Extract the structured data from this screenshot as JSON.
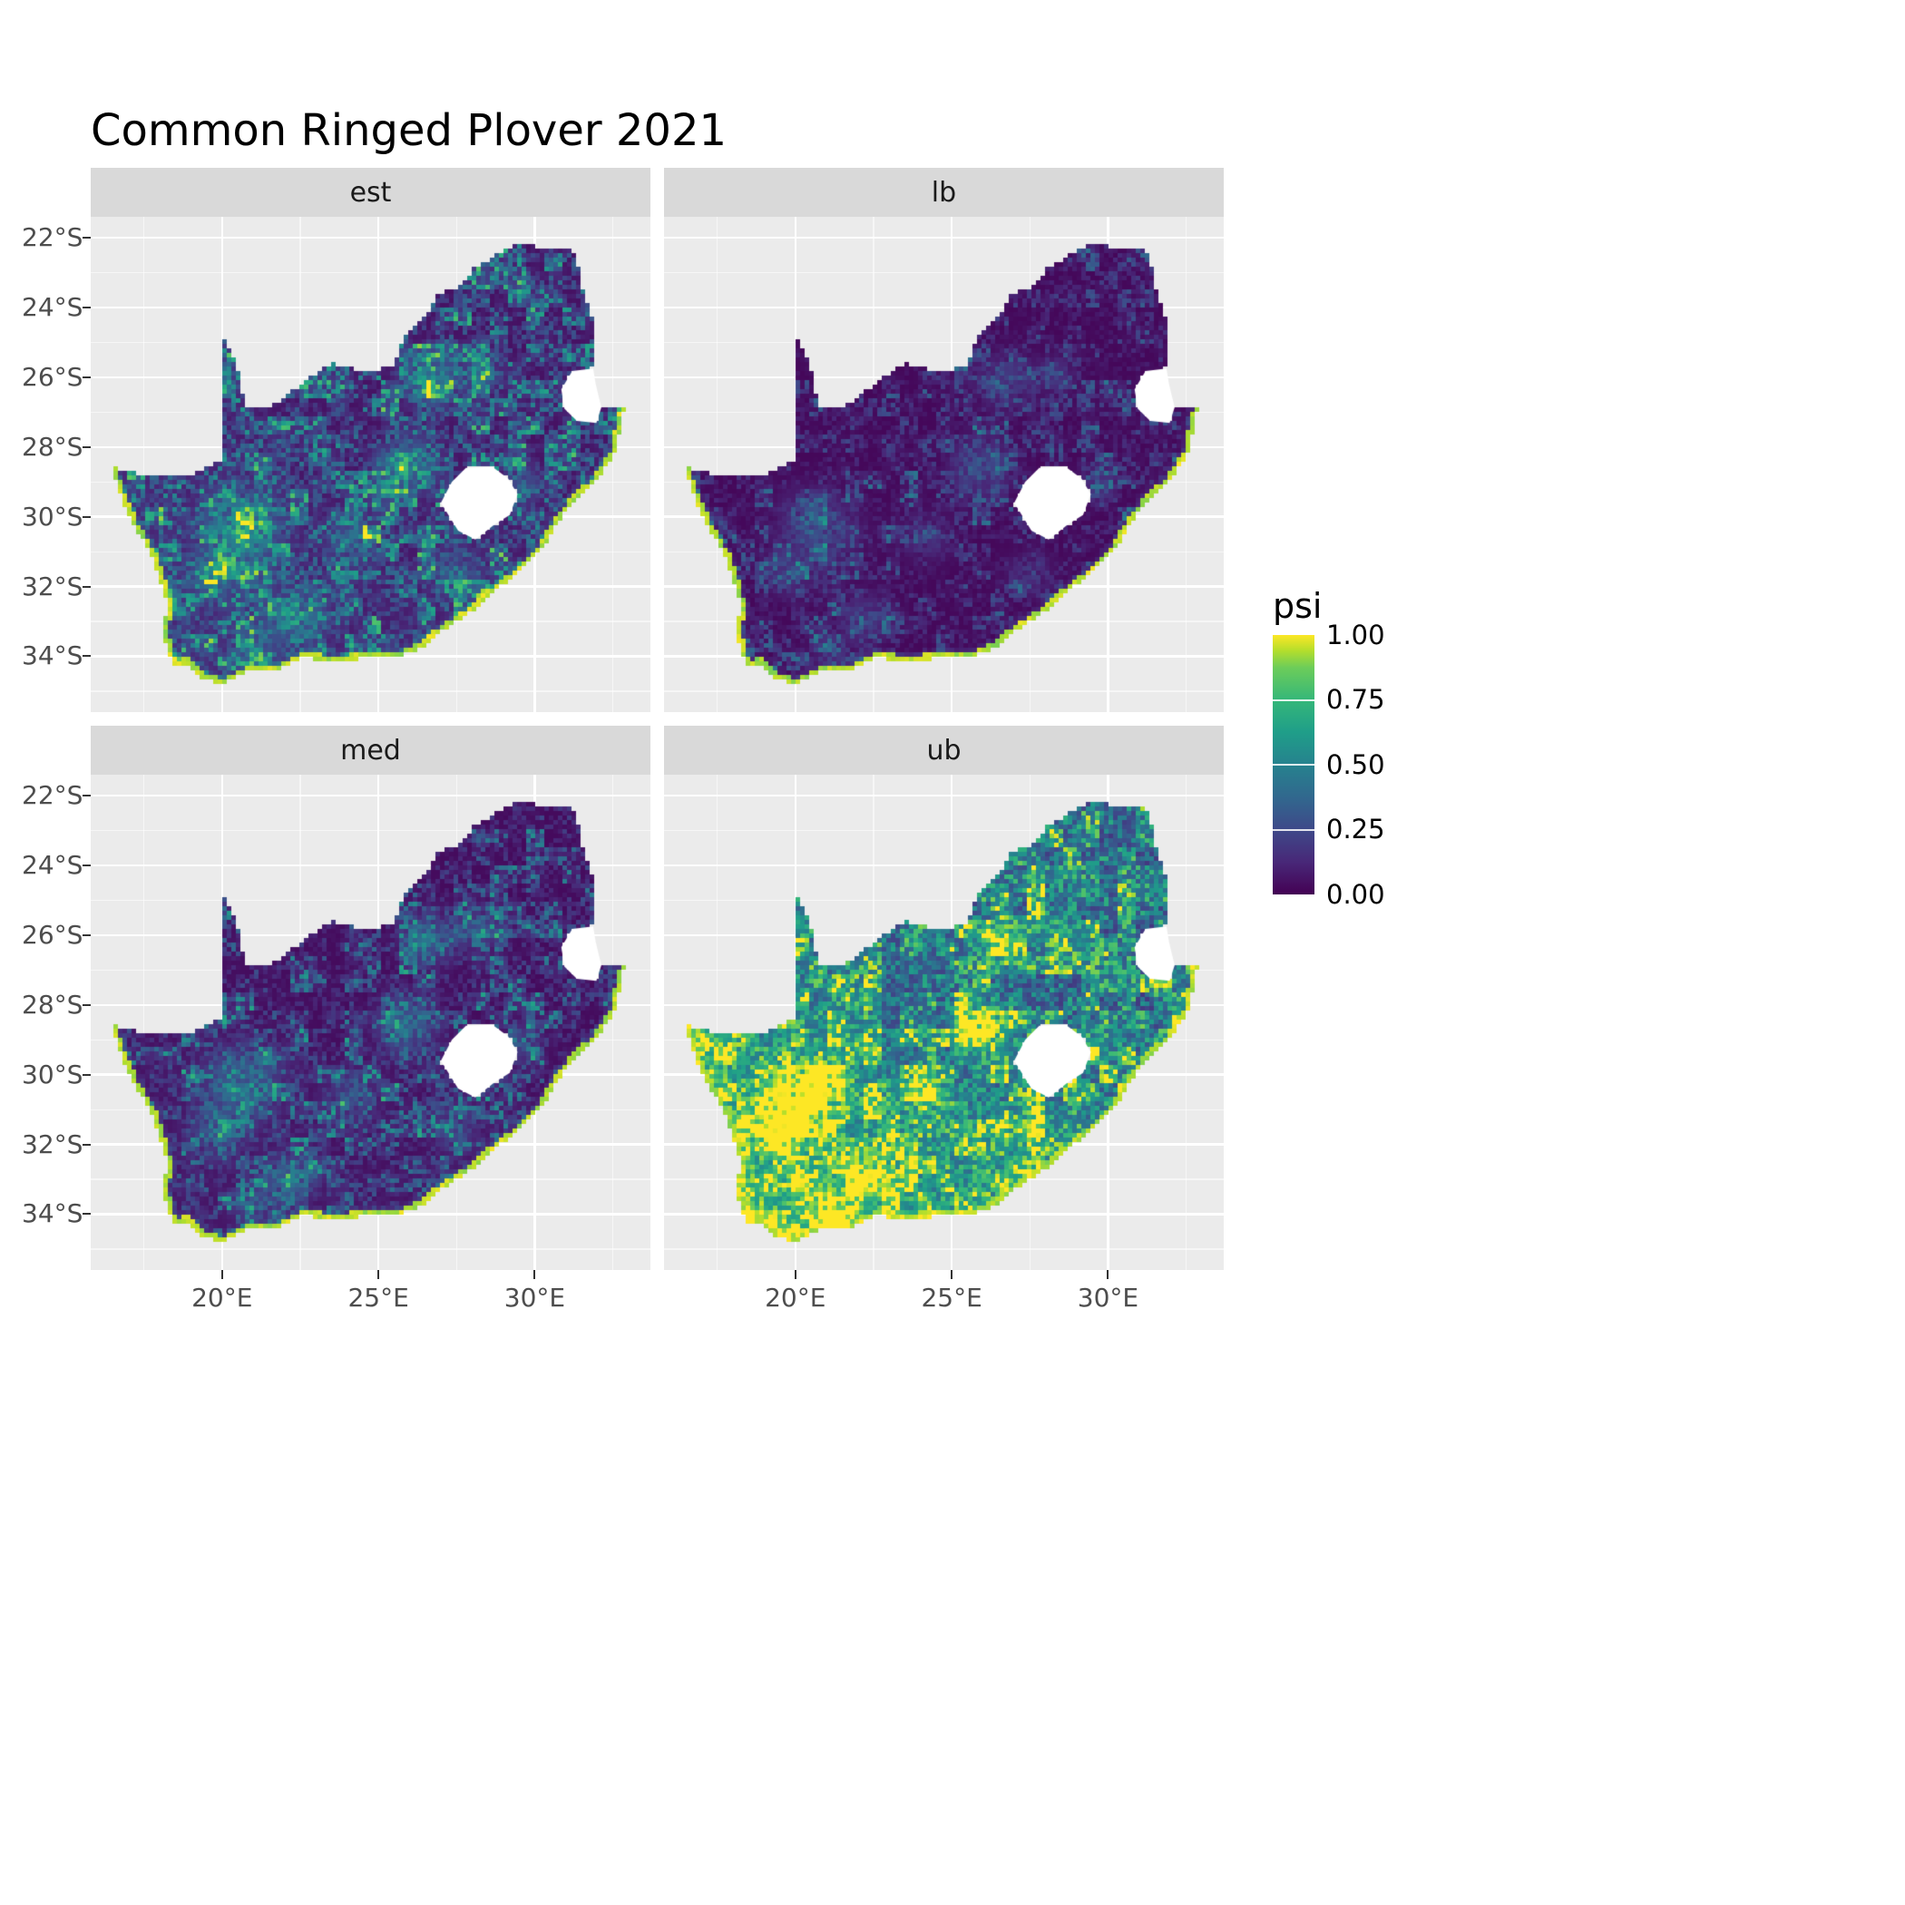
{
  "title": "Common Ringed Plover 2021",
  "axes": {
    "x": [
      {
        "label": "20°E",
        "lon": 20
      },
      {
        "label": "25°E",
        "lon": 25
      },
      {
        "label": "30°E",
        "lon": 30
      }
    ],
    "x_minor": [
      17.5,
      22.5,
      27.5,
      32.5
    ],
    "y": [
      {
        "label": "22°S",
        "lat": -22
      },
      {
        "label": "24°S",
        "lat": -24
      },
      {
        "label": "26°S",
        "lat": -26
      },
      {
        "label": "28°S",
        "lat": -28
      },
      {
        "label": "30°S",
        "lat": -30
      },
      {
        "label": "32°S",
        "lat": -32
      },
      {
        "label": "34°S",
        "lat": -34
      }
    ],
    "y_minor": [
      -23,
      -25,
      -27,
      -29,
      -31,
      -33,
      -35
    ]
  },
  "legend": {
    "title": "psi",
    "ticks": [
      {
        "label": "1.00",
        "value": 1
      },
      {
        "label": "0.75",
        "value": 0.75
      },
      {
        "label": "0.50",
        "value": 0.5
      },
      {
        "label": "0.25",
        "value": 0.25
      },
      {
        "label": "0.00",
        "value": 0
      }
    ]
  },
  "colors": {
    "background": "#FFFFFF",
    "panel_bg": "#EBEBEB",
    "strip_bg": "#D9D9D9",
    "grid": "#FFFFFF",
    "axis_text": "#4D4D4D",
    "tick": "#333333",
    "na_fill": "#FFFFFF"
  },
  "chart_data": {
    "type": "heatmap",
    "subtype": "faceted raster maps of occupancy probability (psi) over South Africa",
    "psi_range": [
      0,
      1
    ],
    "facets": [
      {
        "label": "est",
        "base": 0.05,
        "noise": 0.85,
        "pow": 2.6,
        "hot": 0.85,
        "sw": 0.08
      },
      {
        "label": "lb",
        "base": 0.02,
        "noise": 0.45,
        "pow": 3.2,
        "hot": 0.4,
        "sw": 0.0
      },
      {
        "label": "med",
        "base": 0.03,
        "noise": 0.65,
        "pow": 3.0,
        "hot": 0.65,
        "sw": 0.04
      },
      {
        "label": "ub",
        "base": 0.18,
        "noise": 0.95,
        "pow": 1.6,
        "hot": 1.0,
        "sw": 0.45
      }
    ],
    "extent": {
      "lon_min": 15.8,
      "lon_max": 33.7,
      "lat_top": -21.4,
      "lat_bottom": -35.6
    },
    "viridis": [
      {
        "t": 0,
        "c": "#440154"
      },
      {
        "t": 0.125,
        "c": "#482878"
      },
      {
        "t": 0.25,
        "c": "#3E4989"
      },
      {
        "t": 0.375,
        "c": "#31688E"
      },
      {
        "t": 0.5,
        "c": "#26828E"
      },
      {
        "t": 0.625,
        "c": "#1F9E89"
      },
      {
        "t": 0.75,
        "c": "#35B779"
      },
      {
        "t": 0.875,
        "c": "#6DCD59"
      },
      {
        "t": 0.94,
        "c": "#B4DE2C"
      },
      {
        "t": 1,
        "c": "#FDE725"
      }
    ],
    "outline": [
      [
        16.45,
        -28.58
      ],
      [
        17.2,
        -28.75
      ],
      [
        17.9,
        -28.78
      ],
      [
        18.6,
        -28.87
      ],
      [
        19.3,
        -28.72
      ],
      [
        19.7,
        -28.5
      ],
      [
        19.99,
        -28.4
      ],
      [
        19.99,
        -24.77
      ],
      [
        20.45,
        -25.6
      ],
      [
        20.75,
        -26.89
      ],
      [
        21.6,
        -26.85
      ],
      [
        22.2,
        -26.4
      ],
      [
        22.85,
        -26.0
      ],
      [
        23.5,
        -25.6
      ],
      [
        24.2,
        -25.75
      ],
      [
        24.85,
        -25.8
      ],
      [
        25.45,
        -25.7
      ],
      [
        25.9,
        -24.73
      ],
      [
        26.45,
        -24.3
      ],
      [
        26.9,
        -23.65
      ],
      [
        27.55,
        -23.4
      ],
      [
        28.1,
        -22.85
      ],
      [
        28.95,
        -22.4
      ],
      [
        29.35,
        -22.18
      ],
      [
        30.0,
        -22.25
      ],
      [
        30.65,
        -22.3
      ],
      [
        31.3,
        -22.4
      ],
      [
        31.55,
        -23.5
      ],
      [
        31.85,
        -24.3
      ],
      [
        31.95,
        -25.2
      ],
      [
        31.87,
        -25.75
      ],
      [
        31.2,
        -25.82
      ],
      [
        30.85,
        -26.35
      ],
      [
        30.95,
        -26.9
      ],
      [
        31.35,
        -27.25
      ],
      [
        31.97,
        -27.31
      ],
      [
        32.13,
        -26.86
      ],
      [
        32.89,
        -26.86
      ],
      [
        32.55,
        -28.2
      ],
      [
        32.0,
        -28.95
      ],
      [
        31.25,
        -29.55
      ],
      [
        30.65,
        -30.3
      ],
      [
        30.25,
        -30.9
      ],
      [
        29.45,
        -31.65
      ],
      [
        28.75,
        -32.1
      ],
      [
        28.0,
        -32.7
      ],
      [
        27.05,
        -33.25
      ],
      [
        26.4,
        -33.75
      ],
      [
        25.65,
        -34.0
      ],
      [
        24.85,
        -34.05
      ],
      [
        24.0,
        -34.1
      ],
      [
        23.3,
        -34.1
      ],
      [
        22.55,
        -34.05
      ],
      [
        21.8,
        -34.4
      ],
      [
        20.95,
        -34.4
      ],
      [
        20.0,
        -34.82
      ],
      [
        19.35,
        -34.6
      ],
      [
        18.85,
        -34.2
      ],
      [
        18.45,
        -34.35
      ],
      [
        18.3,
        -33.9
      ],
      [
        18.05,
        -33.15
      ],
      [
        18.3,
        -32.7
      ],
      [
        18.05,
        -31.9
      ],
      [
        17.75,
        -31.1
      ],
      [
        17.2,
        -30.3
      ],
      [
        16.8,
        -29.5
      ]
    ],
    "lesotho": [
      [
        27.0,
        -29.6
      ],
      [
        27.35,
        -29.0
      ],
      [
        27.8,
        -28.6
      ],
      [
        28.65,
        -28.57
      ],
      [
        29.15,
        -28.9
      ],
      [
        29.45,
        -29.35
      ],
      [
        29.2,
        -29.95
      ],
      [
        28.75,
        -30.2
      ],
      [
        28.1,
        -30.65
      ],
      [
        27.55,
        -30.4
      ]
    ],
    "eswatini": [
      [
        31.87,
        -25.75
      ],
      [
        31.2,
        -25.82
      ],
      [
        30.85,
        -26.35
      ],
      [
        30.95,
        -26.9
      ],
      [
        31.35,
        -27.25
      ],
      [
        31.97,
        -27.31
      ],
      [
        32.13,
        -26.86
      ],
      [
        31.95,
        -26.2
      ]
    ],
    "coast": [
      [
        32.89,
        -26.86
      ],
      [
        32.55,
        -28.2
      ],
      [
        32.0,
        -28.95
      ],
      [
        31.25,
        -29.55
      ],
      [
        30.65,
        -30.3
      ],
      [
        30.25,
        -30.9
      ],
      [
        29.45,
        -31.65
      ],
      [
        28.75,
        -32.1
      ],
      [
        28.0,
        -32.7
      ],
      [
        27.05,
        -33.25
      ],
      [
        26.4,
        -33.75
      ],
      [
        25.65,
        -34.0
      ],
      [
        24.85,
        -34.05
      ],
      [
        24.0,
        -34.1
      ],
      [
        23.3,
        -34.1
      ],
      [
        22.55,
        -34.05
      ],
      [
        21.8,
        -34.4
      ],
      [
        20.95,
        -34.4
      ],
      [
        20.0,
        -34.82
      ],
      [
        19.35,
        -34.6
      ],
      [
        18.85,
        -34.2
      ],
      [
        18.45,
        -34.35
      ],
      [
        18.3,
        -33.9
      ],
      [
        18.05,
        -33.15
      ],
      [
        18.3,
        -32.7
      ],
      [
        18.05,
        -31.9
      ],
      [
        17.75,
        -31.1
      ],
      [
        17.2,
        -30.3
      ],
      [
        16.8,
        -29.5
      ],
      [
        16.45,
        -28.58
      ]
    ],
    "hotspots": [
      {
        "lon": 20.7,
        "lat": -30.3,
        "r": 1.3,
        "v": 0.8
      },
      {
        "lon": 19.9,
        "lat": -31.6,
        "r": 0.9,
        "v": 0.5
      },
      {
        "lon": 25.9,
        "lat": -28.6,
        "r": 1.0,
        "v": 0.8
      },
      {
        "lon": 26.7,
        "lat": -26.1,
        "r": 1.0,
        "v": 0.6
      },
      {
        "lon": 28.3,
        "lat": -25.9,
        "r": 0.7,
        "v": 0.5
      },
      {
        "lon": 22.3,
        "lat": -32.9,
        "r": 0.9,
        "v": 0.6
      },
      {
        "lon": 24.2,
        "lat": -30.6,
        "r": 0.9,
        "v": 0.45
      },
      {
        "lon": 29.6,
        "lat": -29.1,
        "r": 0.7,
        "v": 0.4
      },
      {
        "lon": 21.0,
        "lat": -33.8,
        "r": 0.7,
        "v": 0.45
      },
      {
        "lon": 27.5,
        "lat": -31.6,
        "r": 0.8,
        "v": 0.4
      }
    ]
  }
}
